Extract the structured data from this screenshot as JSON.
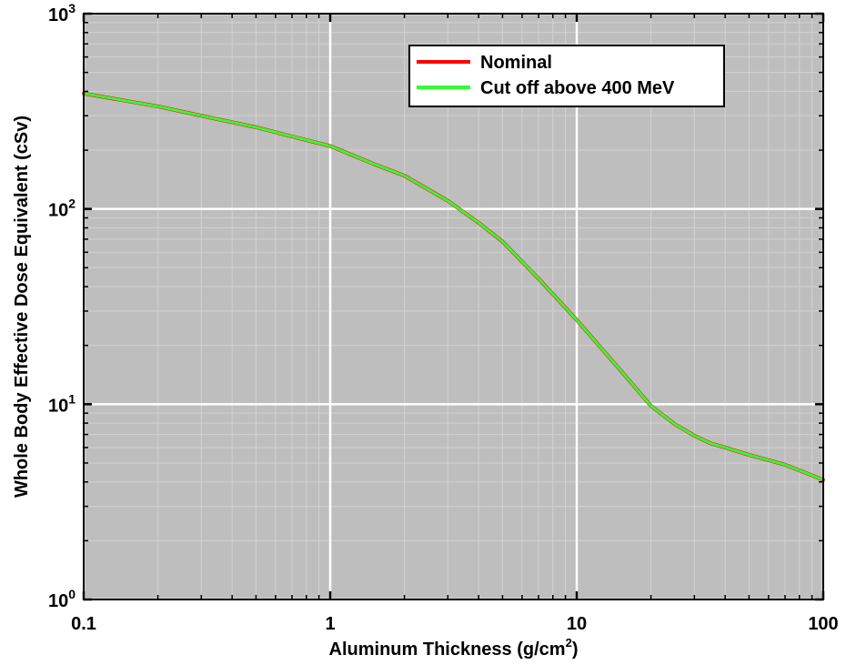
{
  "chart_data": {
    "type": "line",
    "title": "",
    "xlabel": "Aluminum Thickness (g/cm",
    "xlabel_sup": "2",
    "xlabel_tail": ")",
    "ylabel": "Whole Body Effective Dose Equivalent (cSv)",
    "xscale": "log",
    "yscale": "log",
    "xlim": [
      0.1,
      100
    ],
    "ylim": [
      1,
      1000
    ],
    "grid": true,
    "legend_position": "top-right",
    "x_ticks": [
      {
        "value": 0.1,
        "label": "0.1"
      },
      {
        "value": 1,
        "label": "1"
      },
      {
        "value": 10,
        "label": "10"
      },
      {
        "value": 100,
        "label": "100"
      }
    ],
    "y_ticks": [
      {
        "value": 1,
        "base": "10",
        "exp": "0"
      },
      {
        "value": 10,
        "base": "10",
        "exp": "1"
      },
      {
        "value": 100,
        "base": "10",
        "exp": "2"
      },
      {
        "value": 1000,
        "base": "10",
        "exp": "3"
      }
    ],
    "x": [
      0.1,
      0.2,
      0.3,
      0.5,
      0.7,
      1,
      1.5,
      2,
      3,
      4,
      5,
      7,
      10,
      15,
      20,
      25,
      30,
      35,
      40,
      50,
      70,
      100
    ],
    "series": [
      {
        "name": "Nominal",
        "color": "#ff0000",
        "values": [
          390,
          335,
          300,
          262,
          235,
          210,
          170,
          148,
          110,
          85,
          68,
          44,
          27,
          15,
          9.8,
          7.9,
          6.9,
          6.3,
          6.0,
          5.5,
          4.9,
          4.1
        ]
      },
      {
        "name": "Cut off  above 400 MeV",
        "color": "#33ff33",
        "values": [
          390,
          335,
          300,
          262,
          235,
          210,
          170,
          148,
          110,
          85,
          68,
          44,
          27,
          15,
          9.8,
          7.9,
          6.9,
          6.3,
          6.0,
          5.5,
          4.9,
          4.1
        ]
      }
    ],
    "colors": {
      "plot_background": "#bebebe",
      "major_grid": "#ffffff",
      "minor_grid": "#d2d2d2"
    }
  }
}
